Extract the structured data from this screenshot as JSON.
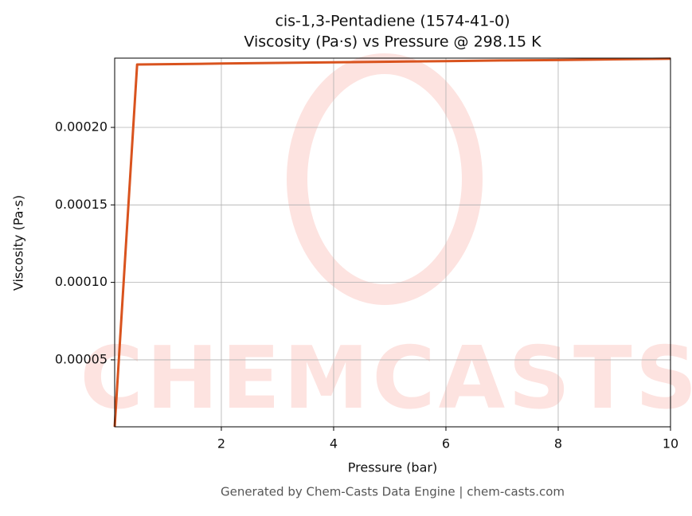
{
  "chart_data": {
    "type": "line",
    "title": "cis-1,3-Pentadiene (1574-41-0)",
    "subtitle": "Viscosity (Pa·s) vs Pressure @ 298.15 K",
    "x_label": "Pressure (bar)",
    "y_label": "Viscosity (Pa·s)",
    "footer": "Generated by Chem-Casts Data Engine | chem-casts.com",
    "watermark": "CHEMCASTS",
    "x": [
      0.1,
      0.5,
      1,
      2,
      3,
      4,
      5,
      6,
      7,
      8,
      9,
      10
    ],
    "series": [
      {
        "name": "Viscosity",
        "color": "#d9531e",
        "values": [
          6.8e-06,
          0.0002406,
          0.0002408,
          0.0002412,
          0.0002416,
          0.000242,
          0.0002424,
          0.0002428,
          0.0002432,
          0.0002435,
          0.0002439,
          0.0002443
        ]
      }
    ],
    "xlim": [
      0.1,
      10
    ],
    "xticks": [
      2,
      4,
      6,
      8,
      10
    ],
    "ylim": [
      6.8e-06,
      0.0002447
    ],
    "yticks": [
      {
        "value": 5e-05,
        "label": "0.00005"
      },
      {
        "value": 0.0001,
        "label": "0.00010"
      },
      {
        "value": 0.00015,
        "label": "0.00015"
      },
      {
        "value": 0.0002,
        "label": "0.00020"
      }
    ],
    "grid": true
  }
}
